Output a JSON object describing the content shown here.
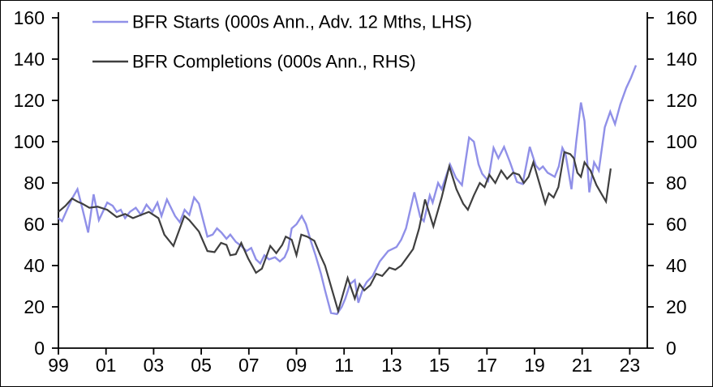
{
  "chart_data": {
    "type": "line",
    "title": "",
    "xlabel": "",
    "ylabel": "",
    "grid": false,
    "legend_position": "top-left",
    "ylim": [
      0,
      160
    ],
    "y_tick_step": 20,
    "y_ticks": [
      "0",
      "20",
      "40",
      "60",
      "80",
      "100",
      "120",
      "140",
      "160"
    ],
    "x_tick_labels": [
      "99",
      "01",
      "03",
      "05",
      "07",
      "09",
      "11",
      "13",
      "15",
      "17",
      "19",
      "21",
      "23"
    ],
    "x_tick_years": [
      1999,
      2001,
      2003,
      2005,
      2007,
      2009,
      2011,
      2013,
      2015,
      2017,
      2019,
      2021,
      2023
    ],
    "axes": {
      "left_axis_label_side": "LHS",
      "right_axis_label_side": "RHS",
      "dual_axis_same_scale": true
    },
    "colors": {
      "starts_line": "#9090e8",
      "completions_line": "#3f3f3f",
      "axis": "#000000"
    },
    "series": [
      {
        "name": "BFR Starts (000s Ann., Adv. 12 Mths, LHS)",
        "color": "#9090e8",
        "axis": "left",
        "points": [
          [
            1999.0,
            63
          ],
          [
            1999.15,
            61.5
          ],
          [
            1999.4,
            68
          ],
          [
            1999.6,
            73
          ],
          [
            1999.8,
            77
          ],
          [
            2000.0,
            68
          ],
          [
            2000.25,
            56
          ],
          [
            2000.48,
            74.5
          ],
          [
            2000.7,
            62
          ],
          [
            2001.05,
            70.5
          ],
          [
            2001.28,
            69
          ],
          [
            2001.45,
            66
          ],
          [
            2001.62,
            67
          ],
          [
            2001.8,
            63
          ],
          [
            2002.0,
            66
          ],
          [
            2002.25,
            68
          ],
          [
            2002.47,
            64.5
          ],
          [
            2002.7,
            69.5
          ],
          [
            2002.95,
            66
          ],
          [
            2003.16,
            70.5
          ],
          [
            2003.33,
            64
          ],
          [
            2003.56,
            72
          ],
          [
            2003.9,
            64
          ],
          [
            2004.1,
            61
          ],
          [
            2004.3,
            67
          ],
          [
            2004.5,
            64.5
          ],
          [
            2004.7,
            73
          ],
          [
            2004.9,
            70
          ],
          [
            2005.26,
            54
          ],
          [
            2005.48,
            55
          ],
          [
            2005.66,
            58
          ],
          [
            2005.85,
            56
          ],
          [
            2006.06,
            53
          ],
          [
            2006.22,
            55
          ],
          [
            2006.45,
            51.5
          ],
          [
            2006.68,
            49.5
          ],
          [
            2006.9,
            47
          ],
          [
            2007.1,
            48.5
          ],
          [
            2007.3,
            43
          ],
          [
            2007.48,
            41
          ],
          [
            2007.65,
            45
          ],
          [
            2007.85,
            43
          ],
          [
            2008.1,
            44
          ],
          [
            2008.3,
            42
          ],
          [
            2008.5,
            44
          ],
          [
            2008.65,
            48
          ],
          [
            2008.8,
            58
          ],
          [
            2009.0,
            60
          ],
          [
            2009.22,
            64
          ],
          [
            2009.4,
            60
          ],
          [
            2009.6,
            52
          ],
          [
            2009.8,
            45
          ],
          [
            2010.03,
            36
          ],
          [
            2010.2,
            28
          ],
          [
            2010.45,
            17
          ],
          [
            2010.7,
            16.5
          ],
          [
            2010.9,
            20
          ],
          [
            2011.05,
            24
          ],
          [
            2011.25,
            31
          ],
          [
            2011.45,
            33
          ],
          [
            2011.6,
            22
          ],
          [
            2011.8,
            29
          ],
          [
            2011.95,
            32
          ],
          [
            2012.2,
            35
          ],
          [
            2012.5,
            42
          ],
          [
            2012.85,
            47
          ],
          [
            2013.2,
            49
          ],
          [
            2013.4,
            52.5
          ],
          [
            2013.6,
            58
          ],
          [
            2013.95,
            75.5
          ],
          [
            2014.2,
            63.5
          ],
          [
            2014.35,
            61.5
          ],
          [
            2014.6,
            74
          ],
          [
            2014.72,
            70.5
          ],
          [
            2014.95,
            80
          ],
          [
            2015.1,
            77
          ],
          [
            2015.45,
            89
          ],
          [
            2015.7,
            82.5
          ],
          [
            2015.95,
            79
          ],
          [
            2016.25,
            102
          ],
          [
            2016.45,
            100
          ],
          [
            2016.65,
            89
          ],
          [
            2016.8,
            84.5
          ],
          [
            2017.05,
            81
          ],
          [
            2017.28,
            97
          ],
          [
            2017.48,
            92
          ],
          [
            2017.72,
            97.5
          ],
          [
            2017.97,
            90
          ],
          [
            2018.26,
            80.5
          ],
          [
            2018.5,
            79.5
          ],
          [
            2018.8,
            97.5
          ],
          [
            2019.05,
            88.5
          ],
          [
            2019.2,
            86.5
          ],
          [
            2019.35,
            88
          ],
          [
            2019.55,
            85
          ],
          [
            2019.7,
            84
          ],
          [
            2019.85,
            83
          ],
          [
            2020.02,
            88
          ],
          [
            2020.17,
            97
          ],
          [
            2020.3,
            94
          ],
          [
            2020.55,
            77
          ],
          [
            2020.75,
            100
          ],
          [
            2020.95,
            119
          ],
          [
            2021.1,
            110
          ],
          [
            2021.3,
            75.5
          ],
          [
            2021.5,
            90
          ],
          [
            2021.7,
            86
          ],
          [
            2021.95,
            107
          ],
          [
            2022.18,
            114.5
          ],
          [
            2022.38,
            108.5
          ],
          [
            2022.6,
            118
          ],
          [
            2022.85,
            126
          ],
          [
            2023.05,
            131
          ],
          [
            2023.26,
            137
          ]
        ]
      },
      {
        "name": "BFR Completions (000s Ann., RHS)",
        "color": "#3f3f3f",
        "axis": "right",
        "points": [
          [
            1999.0,
            66
          ],
          [
            1999.3,
            69
          ],
          [
            1999.57,
            72.5
          ],
          [
            1999.8,
            71
          ],
          [
            2000.0,
            70
          ],
          [
            2000.3,
            68
          ],
          [
            2000.65,
            68.5
          ],
          [
            2001.05,
            67
          ],
          [
            2001.45,
            63.5
          ],
          [
            2001.8,
            65
          ],
          [
            2002.13,
            63
          ],
          [
            2002.47,
            64.5
          ],
          [
            2002.8,
            66
          ],
          [
            2003.2,
            63
          ],
          [
            2003.45,
            55
          ],
          [
            2003.83,
            49.5
          ],
          [
            2004.29,
            64
          ],
          [
            2004.5,
            62
          ],
          [
            2004.9,
            56.5
          ],
          [
            2005.26,
            47
          ],
          [
            2005.56,
            46.5
          ],
          [
            2005.83,
            51
          ],
          [
            2006.06,
            50
          ],
          [
            2006.22,
            45
          ],
          [
            2006.45,
            45.5
          ],
          [
            2006.68,
            51
          ],
          [
            2006.97,
            43.5
          ],
          [
            2007.3,
            36.5
          ],
          [
            2007.55,
            38.5
          ],
          [
            2007.9,
            49.5
          ],
          [
            2008.15,
            46
          ],
          [
            2008.4,
            50
          ],
          [
            2008.55,
            54
          ],
          [
            2008.8,
            52.5
          ],
          [
            2009.0,
            45
          ],
          [
            2009.2,
            55
          ],
          [
            2009.45,
            54
          ],
          [
            2009.75,
            52
          ],
          [
            2010.0,
            45
          ],
          [
            2010.2,
            40
          ],
          [
            2010.5,
            28
          ],
          [
            2010.75,
            18
          ],
          [
            2011.15,
            34
          ],
          [
            2011.45,
            24
          ],
          [
            2011.65,
            31
          ],
          [
            2011.85,
            28
          ],
          [
            2012.1,
            30.5
          ],
          [
            2012.35,
            36
          ],
          [
            2012.6,
            35
          ],
          [
            2012.9,
            39
          ],
          [
            2013.15,
            38
          ],
          [
            2013.4,
            40
          ],
          [
            2013.65,
            44
          ],
          [
            2013.9,
            48
          ],
          [
            2014.15,
            58
          ],
          [
            2014.4,
            72
          ],
          [
            2014.75,
            59
          ],
          [
            2015.1,
            73
          ],
          [
            2015.42,
            88
          ],
          [
            2015.72,
            77
          ],
          [
            2016.0,
            70
          ],
          [
            2016.2,
            67
          ],
          [
            2016.45,
            74
          ],
          [
            2016.7,
            80
          ],
          [
            2016.9,
            78
          ],
          [
            2017.1,
            84
          ],
          [
            2017.35,
            80
          ],
          [
            2017.6,
            86
          ],
          [
            2017.85,
            82
          ],
          [
            2018.1,
            85
          ],
          [
            2018.35,
            84
          ],
          [
            2018.55,
            80
          ],
          [
            2018.75,
            83
          ],
          [
            2018.95,
            90
          ],
          [
            2019.15,
            82
          ],
          [
            2019.3,
            76
          ],
          [
            2019.45,
            70
          ],
          [
            2019.6,
            75
          ],
          [
            2019.8,
            73
          ],
          [
            2020.0,
            78
          ],
          [
            2020.25,
            95
          ],
          [
            2020.5,
            94
          ],
          [
            2020.65,
            92
          ],
          [
            2020.8,
            85
          ],
          [
            2020.95,
            83
          ],
          [
            2021.1,
            90
          ],
          [
            2021.35,
            86
          ],
          [
            2021.6,
            79
          ],
          [
            2021.85,
            74
          ],
          [
            2022.0,
            71
          ],
          [
            2022.2,
            87
          ]
        ]
      }
    ]
  }
}
